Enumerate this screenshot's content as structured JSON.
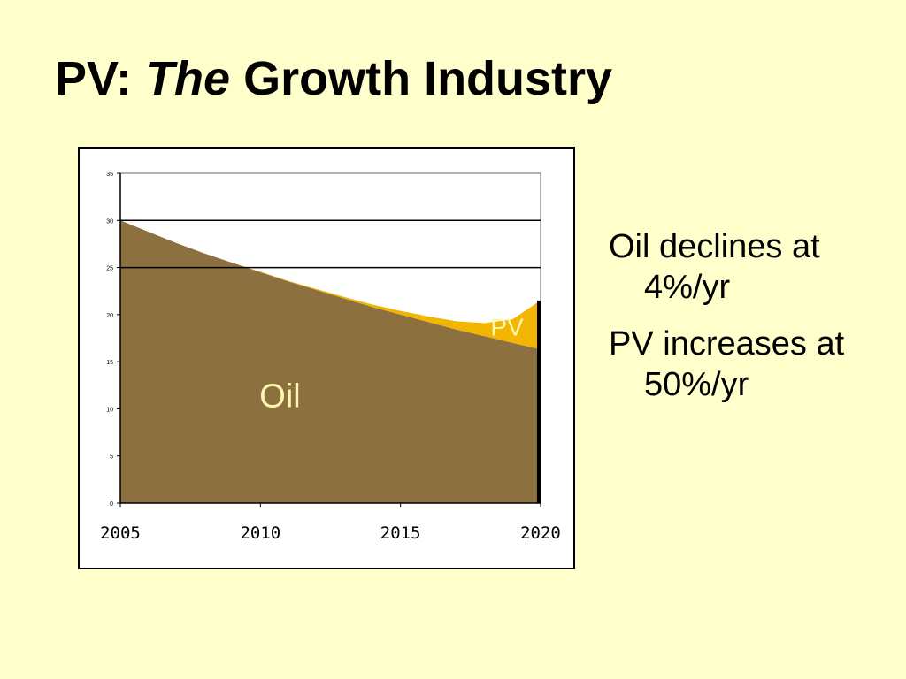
{
  "slide": {
    "title_part1": "PV:",
    "title_part2": "The",
    "title_part3": "Growth Industry"
  },
  "bullets": [
    "Oil declines at 4%/yr",
    "PV increases at 50%/yr"
  ],
  "colors": {
    "background": "#ffffcc",
    "oil": "#8c7040",
    "pv": "#f2b500",
    "label": "#fff6b0"
  },
  "chart_data": {
    "type": "area",
    "stacked": true,
    "x": [
      2005,
      2006,
      2007,
      2008,
      2009,
      2010,
      2011,
      2012,
      2013,
      2014,
      2015,
      2016,
      2017,
      2018,
      2019,
      2020
    ],
    "series": [
      {
        "name": "Oil",
        "values": [
          30,
          28.8,
          27.6,
          26.5,
          25.5,
          24.5,
          23.5,
          22.6,
          21.7,
          20.8,
          20,
          19.2,
          18.4,
          17.7,
          17,
          16.3
        ]
      },
      {
        "name": "PV",
        "values": [
          0,
          0,
          0,
          0,
          0,
          0.05,
          0.08,
          0.12,
          0.18,
          0.27,
          0.4,
          0.6,
          0.9,
          1.4,
          2.5,
          5.2
        ]
      }
    ],
    "xticks": [
      "2005",
      "2010",
      "2015",
      "2020"
    ],
    "yticks": [
      "0",
      "5",
      "10",
      "15",
      "20",
      "25",
      "30",
      "35"
    ],
    "ylim": [
      0,
      35
    ],
    "grid_values": [
      25,
      30
    ],
    "area_labels": [
      "Oil",
      "PV"
    ]
  }
}
